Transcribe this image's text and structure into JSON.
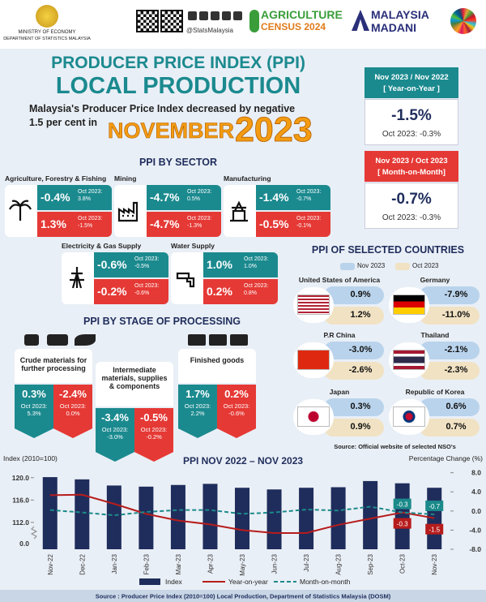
{
  "header": {
    "ministry": "MINISTRY OF ECONOMY",
    "department": "DEPARTMENT OF STATISTICS MALAYSIA",
    "handle": "@StatsMalaysia",
    "census_line1": "AGRICULTURE",
    "census_line2": "CENSUS 2024",
    "madani_line1": "MALAYSIA",
    "madani_line2": "MADANI"
  },
  "title": {
    "line1": "PRODUCER PRICE INDEX (PPI)",
    "line2": "LOCAL PRODUCTION",
    "summary_line1": "Malaysia's Producer Price Index decreased by negative",
    "summary_line2": "1.5 per cent in",
    "month": "NOVEMBER",
    "year": "2023"
  },
  "headline": [
    {
      "period": "Nov 2023 / Nov 2022",
      "basis": "[ Year-on-Year ]",
      "value": "-1.5%",
      "previous": "Oct 2023: -0.3%"
    },
    {
      "period": "Nov 2023 / Oct 2023",
      "basis": "[ Month-on-Month]",
      "value": "-0.7%",
      "previous": "Oct 2023: -0.3%"
    }
  ],
  "sectors": {
    "title": "PPI BY SECTOR",
    "items": [
      {
        "name": "Agriculture, Forestry & Fishing",
        "yoy": "-0.4%",
        "yoy_prev": "Oct 2023: 3.8%",
        "mom": "1.3%",
        "mom_prev": "Oct 2023: -1.5%"
      },
      {
        "name": "Mining",
        "yoy": "-4.7%",
        "yoy_prev": "Oct 2023: 0.5%",
        "mom": "-4.7%",
        "mom_prev": "Oct 2023: -1.3%"
      },
      {
        "name": "Manufacturing",
        "yoy": "-1.4%",
        "yoy_prev": "Oct 2023: -0.7%",
        "mom": "-0.5%",
        "mom_prev": "Oct 2023: -0.1%"
      },
      {
        "name": "Electricity & Gas Supply",
        "yoy": "-0.6%",
        "yoy_prev": "Oct 2023: -0.5%",
        "mom": "-0.2%",
        "mom_prev": "Oct 2023: -0.6%"
      },
      {
        "name": "Water Supply",
        "yoy": "1.0%",
        "yoy_prev": "Oct 2023: 1.0%",
        "mom": "0.2%",
        "mom_prev": "Oct 2023: 0.8%"
      }
    ]
  },
  "stages": {
    "title": "PPI BY STAGE OF PROCESSING",
    "items": [
      {
        "name": "Crude materials for further processing",
        "yoy": "0.3%",
        "yoy_prev": "Oct 2023: 5.3%",
        "mom": "-2.4%",
        "mom_prev": "Oct 2023: 0.0%"
      },
      {
        "name": "Intermediate materials, supplies & components",
        "yoy": "-3.4%",
        "yoy_prev": "Oct 2023: -3.0%",
        "mom": "-0.5%",
        "mom_prev": "Oct 2023: -0.2%"
      },
      {
        "name": "Finished goods",
        "yoy": "1.7%",
        "yoy_prev": "Oct 2023: 2.2%",
        "mom": "0.2%",
        "mom_prev": "Oct 2023: -0.6%"
      }
    ]
  },
  "countries": {
    "title": "PPI OF SELECTED COUNTRIES",
    "legend": [
      "Nov 2023",
      "Oct 2023"
    ],
    "items": [
      {
        "name": "United States of America",
        "nov": "0.9%",
        "oct": "1.2%"
      },
      {
        "name": "Germany",
        "nov": "-7.9%",
        "oct": "-11.0%"
      },
      {
        "name": "P.R China",
        "nov": "-3.0%",
        "oct": "-2.6%"
      },
      {
        "name": "Thailand",
        "nov": "-2.1%",
        "oct": "-2.3%"
      },
      {
        "name": "Japan",
        "nov": "0.3%",
        "oct": "0.9%"
      },
      {
        "name": "Republic of Korea",
        "nov": "0.6%",
        "oct": "0.7%"
      }
    ],
    "source": "Source: Official website of selected NSO's"
  },
  "chart_data": {
    "type": "combo",
    "title": "PPI NOV 2022 – NOV 2023",
    "y_label": "Index (2010=100)",
    "y2_label": "Percentage Change (%)",
    "categories": [
      "Nov-22",
      "Dec-22",
      "Jan-23",
      "Feb-23",
      "Mar-23",
      "Apr-23",
      "May-23",
      "Jun-23",
      "Jul-23",
      "Aug-23",
      "Sep-23",
      "Oct-23",
      "Nov-23"
    ],
    "series": [
      {
        "name": "Index",
        "type": "bar",
        "color": "#1f2d5c",
        "values": [
          120.1,
          119.7,
          118.6,
          118.4,
          118.7,
          118.9,
          118.2,
          117.9,
          118.2,
          118.3,
          119.4,
          119.0,
          118.2
        ]
      },
      {
        "name": "Year-on-year",
        "type": "line",
        "axis": "y2",
        "color": "#b71c1c",
        "values": [
          3.3,
          3.4,
          1.5,
          -0.6,
          -2.0,
          -2.8,
          -4.0,
          -4.6,
          -4.6,
          -2.9,
          -1.6,
          -0.3,
          -1.5
        ],
        "value_labels": [
          null,
          null,
          null,
          null,
          null,
          null,
          null,
          null,
          null,
          null,
          null,
          "-0.3",
          "-1.5"
        ]
      },
      {
        "name": "Month-on-month",
        "type": "line",
        "axis": "y2",
        "dashed": true,
        "color": "#1b8a8a",
        "values": [
          0.2,
          -0.3,
          -0.9,
          -0.2,
          0.2,
          0.2,
          -0.6,
          -0.3,
          0.3,
          0.1,
          0.9,
          -0.3,
          -0.7
        ],
        "value_labels": [
          null,
          null,
          null,
          null,
          null,
          null,
          null,
          null,
          null,
          null,
          null,
          "-0.3",
          "-0.7"
        ]
      }
    ],
    "ylim": [
      107.2,
      122
    ],
    "yticks": [
      {
        "value": 112,
        "label": "112.0"
      },
      {
        "value": 116,
        "label": "116.0"
      },
      {
        "value": 120,
        "label": "120.0"
      }
    ],
    "y_break_label": "0.0",
    "y2lim": [
      -8,
      9.3
    ],
    "y2ticks": [
      {
        "value": -8,
        "label": "-8.0"
      },
      {
        "value": -4,
        "label": "-4.0"
      },
      {
        "value": 0,
        "label": "0.0"
      },
      {
        "value": 4,
        "label": "4.0"
      },
      {
        "value": 8,
        "label": "8.0"
      }
    ]
  },
  "footer": "Source : Producer Price Index (2010=100)  Local Production, Department of Statistics Malaysia (DOSM)"
}
